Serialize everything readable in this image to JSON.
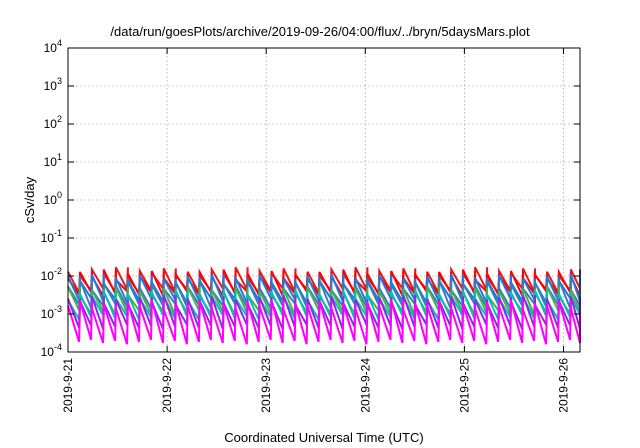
{
  "chart_data": {
    "type": "line",
    "title": "/data/run/goesPlots/archive/2019-09-26/04:00/flux/../bryn/5daysMars.plot",
    "xlabel": "Coordinated Universal Time (UTC)",
    "ylabel": "cSv/day",
    "yscale": "log",
    "xlim": [
      "2019-09-21T00:00",
      "2019-09-26T04:00"
    ],
    "ylim": [
      0.0001,
      10000
    ],
    "x_ticks": [
      "2019-9-21",
      "2019-9-22",
      "2019-9-23",
      "2019-9-24",
      "2019-9-25",
      "2019-9-26"
    ],
    "y_ticks": [
      {
        "base": "10",
        "exp": "-4"
      },
      {
        "base": "10",
        "exp": "-3"
      },
      {
        "base": "10",
        "exp": "-2"
      },
      {
        "base": "10",
        "exp": "-1"
      },
      {
        "base": "10",
        "exp": "0"
      },
      {
        "base": "10",
        "exp": "1"
      },
      {
        "base": "10",
        "exp": "2"
      },
      {
        "base": "10",
        "exp": "3"
      },
      {
        "base": "10",
        "exp": "4"
      }
    ],
    "grid": true,
    "pattern": {
      "description": "sawtooth",
      "period_hours": 2.9
    },
    "series": [
      {
        "color": "#e41a1c",
        "peak": 0.013,
        "trough": 0.0045
      },
      {
        "color": "#ff0000",
        "peak": 0.011,
        "trough": 0.0038
      },
      {
        "color": "#1f78e4",
        "peak": 0.0085,
        "trough": 0.0025
      },
      {
        "color": "#377eb8",
        "peak": 0.006,
        "trough": 0.0018
      },
      {
        "color": "#4daf4a",
        "peak": 0.004,
        "trough": 0.0012
      },
      {
        "color": "#00bfbf",
        "peak": 0.0032,
        "trough": 0.0009
      },
      {
        "color": "#8a2be2",
        "peak": 0.0024,
        "trough": 0.0005
      },
      {
        "color": "#ff00ff",
        "peak": 0.0018,
        "trough": 0.0002
      }
    ]
  }
}
